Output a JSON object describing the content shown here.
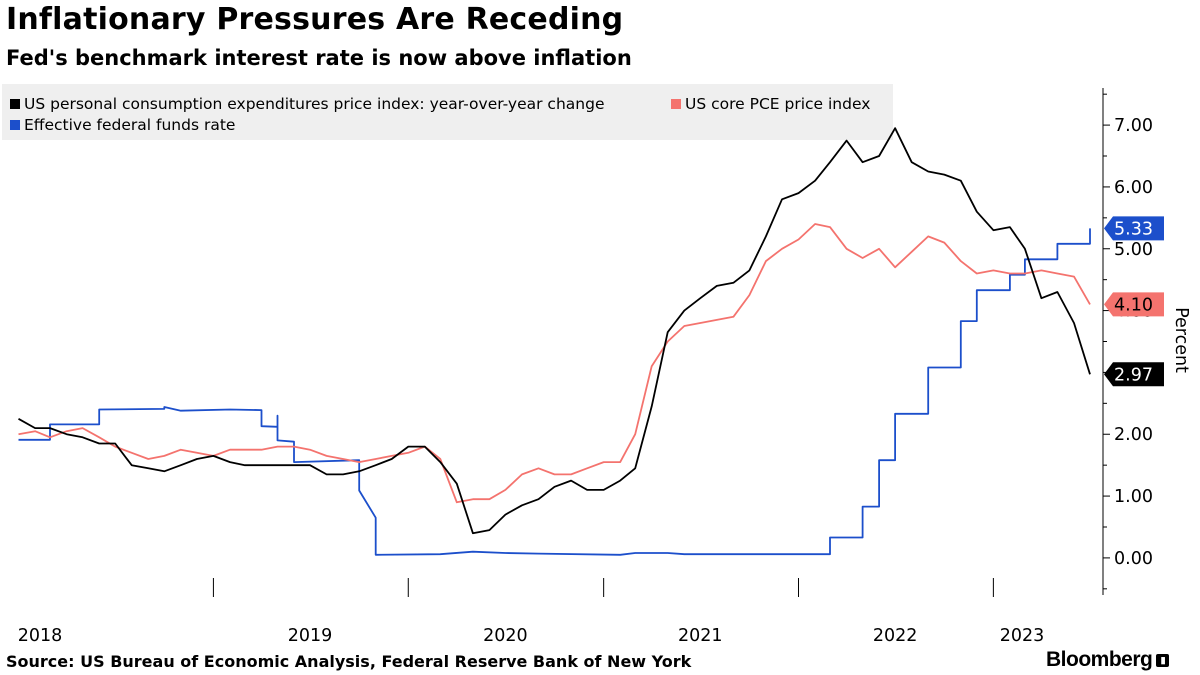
{
  "header": {
    "title": "Inflationary Pressures Are Receding",
    "subtitle": "Fed's benchmark interest rate is now above inflation"
  },
  "footer": {
    "source": "Source: US Bureau of Economic Analysis, Federal Reserve Bank of New York",
    "brand": "Bloomberg"
  },
  "chart_data": {
    "type": "line",
    "title": "Inflationary Pressures Are Receding",
    "subtitle": "Fed's benchmark interest rate is now above inflation",
    "ylabel": "Percent",
    "ylim": [
      -0.6,
      7.6
    ],
    "yticks": [
      "0.00",
      "1.00",
      "2.00",
      "3.00",
      "4.00",
      "5.00",
      "6.00",
      "7.00"
    ],
    "ytick_values": [
      0,
      1,
      2,
      3,
      4,
      5,
      6,
      7
    ],
    "xlim": [
      "2017-12-01",
      "2023-07-01"
    ],
    "xticks": [
      "2018",
      "2019",
      "2020",
      "2021",
      "2022",
      "2023"
    ],
    "grid": false,
    "legend_position": "top-left",
    "series": [
      {
        "name": "US personal consumption expenditures price index: year-over-year change",
        "color": "#000000",
        "end_label": "2.97",
        "points": [
          [
            "2018-01",
            2.25
          ],
          [
            "2018-02",
            2.1
          ],
          [
            "2018-03",
            2.1
          ],
          [
            "2018-04",
            2.0
          ],
          [
            "2018-05",
            1.95
          ],
          [
            "2018-06",
            1.85
          ],
          [
            "2018-07",
            1.85
          ],
          [
            "2018-08",
            1.5
          ],
          [
            "2018-09",
            1.45
          ],
          [
            "2018-10",
            1.4
          ],
          [
            "2018-11",
            1.5
          ],
          [
            "2018-12",
            1.6
          ],
          [
            "2019-01",
            1.65
          ],
          [
            "2019-02",
            1.55
          ],
          [
            "2019-03",
            1.5
          ],
          [
            "2019-04",
            1.5
          ],
          [
            "2019-05",
            1.5
          ],
          [
            "2019-06",
            1.5
          ],
          [
            "2019-07",
            1.5
          ],
          [
            "2019-08",
            1.35
          ],
          [
            "2019-09",
            1.35
          ],
          [
            "2019-10",
            1.4
          ],
          [
            "2019-11",
            1.5
          ],
          [
            "2019-12",
            1.6
          ],
          [
            "2020-01",
            1.8
          ],
          [
            "2020-02",
            1.8
          ],
          [
            "2020-03",
            1.55
          ],
          [
            "2020-04",
            1.2
          ],
          [
            "2020-05",
            0.4
          ],
          [
            "2020-06",
            0.45
          ],
          [
            "2020-07",
            0.7
          ],
          [
            "2020-08",
            0.85
          ],
          [
            "2020-09",
            0.95
          ],
          [
            "2020-10",
            1.15
          ],
          [
            "2020-11",
            1.25
          ],
          [
            "2020-12",
            1.1
          ],
          [
            "2021-01",
            1.1
          ],
          [
            "2021-02",
            1.25
          ],
          [
            "2021-03",
            1.45
          ],
          [
            "2021-04",
            2.45
          ],
          [
            "2021-05",
            3.65
          ],
          [
            "2021-06",
            4.0
          ],
          [
            "2021-07",
            4.2
          ],
          [
            "2021-08",
            4.4
          ],
          [
            "2021-09",
            4.45
          ],
          [
            "2021-10",
            4.65
          ],
          [
            "2021-11",
            5.2
          ],
          [
            "2021-12",
            5.8
          ],
          [
            "2022-01",
            5.9
          ],
          [
            "2022-02",
            6.1
          ],
          [
            "2022-03",
            6.4
          ],
          [
            "2022-04",
            6.75
          ],
          [
            "2022-05",
            6.4
          ],
          [
            "2022-06",
            6.5
          ],
          [
            "2022-07",
            6.95
          ],
          [
            "2022-08",
            6.4
          ],
          [
            "2022-09",
            6.25
          ],
          [
            "2022-10",
            6.2
          ],
          [
            "2022-11",
            6.1
          ],
          [
            "2022-12",
            5.6
          ],
          [
            "2023-01",
            5.3
          ],
          [
            "2023-02",
            5.35
          ],
          [
            "2023-03",
            5.0
          ],
          [
            "2023-04",
            4.2
          ],
          [
            "2023-05",
            4.3
          ],
          [
            "2023-06",
            3.8
          ],
          [
            "2023-07",
            2.97
          ]
        ]
      },
      {
        "name": "US core PCE price index",
        "color": "#f4736e",
        "end_label": "4.10",
        "points": [
          [
            "2018-01",
            2.0
          ],
          [
            "2018-02",
            2.05
          ],
          [
            "2018-03",
            1.95
          ],
          [
            "2018-04",
            2.05
          ],
          [
            "2018-05",
            2.1
          ],
          [
            "2018-06",
            1.95
          ],
          [
            "2018-07",
            1.8
          ],
          [
            "2018-08",
            1.7
          ],
          [
            "2018-09",
            1.6
          ],
          [
            "2018-10",
            1.65
          ],
          [
            "2018-11",
            1.75
          ],
          [
            "2018-12",
            1.7
          ],
          [
            "2019-01",
            1.65
          ],
          [
            "2019-02",
            1.75
          ],
          [
            "2019-03",
            1.75
          ],
          [
            "2019-04",
            1.75
          ],
          [
            "2019-05",
            1.8
          ],
          [
            "2019-06",
            1.8
          ],
          [
            "2019-07",
            1.75
          ],
          [
            "2019-08",
            1.65
          ],
          [
            "2019-09",
            1.6
          ],
          [
            "2019-10",
            1.55
          ],
          [
            "2019-11",
            1.6
          ],
          [
            "2019-12",
            1.65
          ],
          [
            "2020-01",
            1.7
          ],
          [
            "2020-02",
            1.8
          ],
          [
            "2020-03",
            1.6
          ],
          [
            "2020-04",
            0.9
          ],
          [
            "2020-05",
            0.95
          ],
          [
            "2020-06",
            0.95
          ],
          [
            "2020-07",
            1.1
          ],
          [
            "2020-08",
            1.35
          ],
          [
            "2020-09",
            1.45
          ],
          [
            "2020-10",
            1.35
          ],
          [
            "2020-11",
            1.35
          ],
          [
            "2020-12",
            1.45
          ],
          [
            "2021-01",
            1.55
          ],
          [
            "2021-02",
            1.55
          ],
          [
            "2021-03",
            2.0
          ],
          [
            "2021-04",
            3.1
          ],
          [
            "2021-05",
            3.5
          ],
          [
            "2021-06",
            3.75
          ],
          [
            "2021-07",
            3.8
          ],
          [
            "2021-08",
            3.85
          ],
          [
            "2021-09",
            3.9
          ],
          [
            "2021-10",
            4.25
          ],
          [
            "2021-11",
            4.8
          ],
          [
            "2021-12",
            5.0
          ],
          [
            "2022-01",
            5.15
          ],
          [
            "2022-02",
            5.4
          ],
          [
            "2022-03",
            5.35
          ],
          [
            "2022-04",
            5.0
          ],
          [
            "2022-05",
            4.85
          ],
          [
            "2022-06",
            5.0
          ],
          [
            "2022-07",
            4.7
          ],
          [
            "2022-08",
            4.95
          ],
          [
            "2022-09",
            5.2
          ],
          [
            "2022-10",
            5.1
          ],
          [
            "2022-11",
            4.8
          ],
          [
            "2022-12",
            4.6
          ],
          [
            "2023-01",
            4.65
          ],
          [
            "2023-02",
            4.6
          ],
          [
            "2023-03",
            4.6
          ],
          [
            "2023-04",
            4.65
          ],
          [
            "2023-05",
            4.6
          ],
          [
            "2023-06",
            4.55
          ],
          [
            "2023-07",
            4.1
          ]
        ]
      },
      {
        "name": "Effective federal funds rate",
        "color": "#1c4fcb",
        "end_label": "5.33",
        "points": [
          [
            "2018-01",
            1.91
          ],
          [
            "2018-03",
            1.91
          ],
          [
            "2018-03",
            2.16
          ],
          [
            "2018-06",
            2.16
          ],
          [
            "2018-06",
            2.4
          ],
          [
            "2018-10",
            2.41
          ],
          [
            "2018-10",
            2.44
          ],
          [
            "2018-11",
            2.38
          ],
          [
            "2019-02",
            2.4
          ],
          [
            "2019-04",
            2.39
          ],
          [
            "2019-04",
            2.13
          ],
          [
            "2019-05",
            2.12
          ],
          [
            "2019-05",
            2.3
          ],
          [
            "2019-05",
            1.9
          ],
          [
            "2019-06",
            1.88
          ],
          [
            "2019-06",
            1.55
          ],
          [
            "2019-10",
            1.58
          ],
          [
            "2019-10",
            1.09
          ],
          [
            "2019-11",
            0.65
          ],
          [
            "2019-11",
            0.05
          ],
          [
            "2020-03",
            0.06
          ],
          [
            "2020-05",
            0.1
          ],
          [
            "2020-07",
            0.08
          ],
          [
            "2020-09",
            0.07
          ],
          [
            "2021-02",
            0.05
          ],
          [
            "2021-03",
            0.08
          ],
          [
            "2021-05",
            0.08
          ],
          [
            "2021-06",
            0.06
          ],
          [
            "2022-03",
            0.06
          ],
          [
            "2022-03",
            0.33
          ],
          [
            "2022-05",
            0.33
          ],
          [
            "2022-05",
            0.83
          ],
          [
            "2022-06",
            0.83
          ],
          [
            "2022-06",
            1.58
          ],
          [
            "2022-07",
            1.58
          ],
          [
            "2022-07",
            2.33
          ],
          [
            "2022-09",
            2.33
          ],
          [
            "2022-09",
            3.08
          ],
          [
            "2022-11",
            3.08
          ],
          [
            "2022-11",
            3.83
          ],
          [
            "2022-12",
            3.83
          ],
          [
            "2022-12",
            4.33
          ],
          [
            "2023-02",
            4.33
          ],
          [
            "2023-02",
            4.58
          ],
          [
            "2023-03",
            4.58
          ],
          [
            "2023-03",
            4.83
          ],
          [
            "2023-05",
            4.83
          ],
          [
            "2023-05",
            5.08
          ],
          [
            "2023-07",
            5.08
          ],
          [
            "2023-07",
            5.33
          ],
          [
            "2023-07",
            5.33
          ]
        ]
      }
    ]
  }
}
